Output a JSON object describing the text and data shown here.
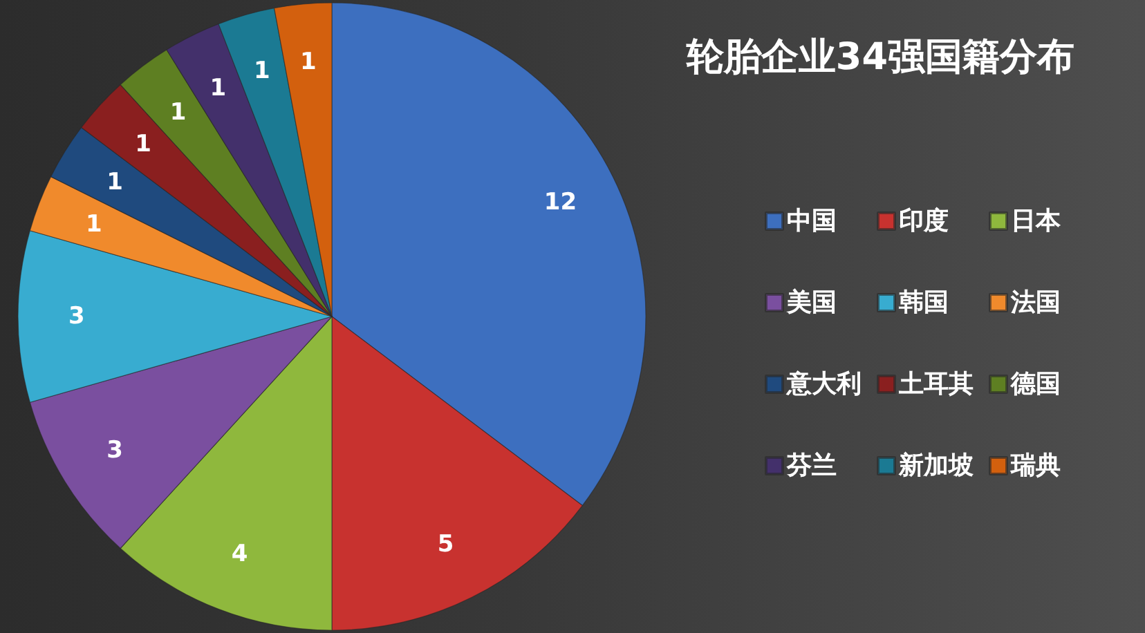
{
  "chart_data": {
    "type": "pie",
    "title": "轮胎企业34强国籍分布",
    "categories": [
      "中国",
      "印度",
      "日本",
      "美国",
      "韩国",
      "法国",
      "意大利",
      "土耳其",
      "德国",
      "芬兰",
      "新加坡",
      "瑞典"
    ],
    "values": [
      12,
      5,
      4,
      3,
      3,
      1,
      1,
      1,
      1,
      1,
      1,
      1
    ],
    "colors": [
      "#3d6fbf",
      "#c8322f",
      "#8fb83d",
      "#7a4f9f",
      "#38acd0",
      "#f08a2c",
      "#1f4a7e",
      "#8a1f1f",
      "#5e7f22",
      "#43306b",
      "#1b7a93",
      "#d3600e"
    ],
    "data_labels": true,
    "legend": "right"
  }
}
